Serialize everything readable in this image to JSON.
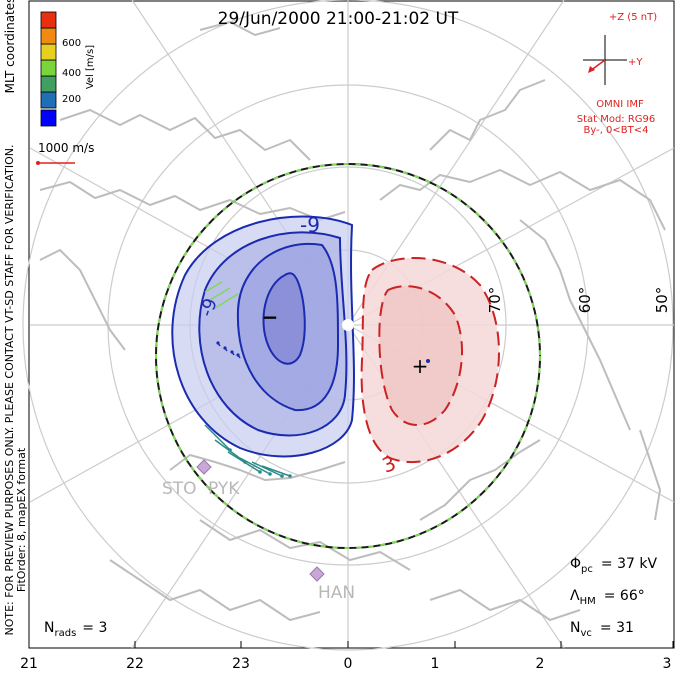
{
  "title": "29/Jun/2000 21:00-21:02 UT",
  "coords_label": "MLT coordinates",
  "colorbar": {
    "label": "Vel [m/s]",
    "ticks": [
      "600",
      "400",
      "200"
    ],
    "colors": [
      "#0000ff",
      "#1e6fb5",
      "#3fa060",
      "#7bd43a",
      "#e8d020",
      "#f08a10",
      "#e83010"
    ]
  },
  "velocity_scale": "1000 m/s",
  "imf": {
    "z_label": "+Z (5 nT)",
    "y_label": "+Y",
    "source": "OMNI IMF",
    "model": "Stat Mod: RG96",
    "condition": "By-, 0<BT<4",
    "color": "#dd2222"
  },
  "latitude_labels": [
    "70°",
    "60°",
    "50°"
  ],
  "contour_labels": {
    "negative": [
      "-9",
      "-9"
    ],
    "positive": [
      "3"
    ]
  },
  "cell_markers": {
    "min": "−",
    "max": "+"
  },
  "stations": [
    "STO",
    "PYK",
    "HAN"
  ],
  "side_note": "NOTE: FOR PREVIEW PURPOSES ONLY. PLEASE CONTACT VT-SD STAFF FOR VERIFICATION.",
  "fit_note": "FitOrder: 8, mapEX format",
  "nrads": {
    "label": "N",
    "sub": "rads",
    "value": "= 3"
  },
  "phi_pc": {
    "label": "Φ",
    "sub": "pc",
    "value": "= 37 kV"
  },
  "lambda_hm": {
    "label": "Λ",
    "sub": "HM",
    "value": "= 66°"
  },
  "nvc": {
    "label": "N",
    "sub": "vc",
    "value": "= 31"
  },
  "mlt_ticks": [
    "21",
    "22",
    "23",
    "0",
    "1",
    "2",
    "3"
  ],
  "colors": {
    "negative_cell": "#2a3aa8",
    "positive_cell": "#cc2222",
    "map_lines": "#bdbdbd",
    "grid": "#cccccc",
    "boundary": "#1a1a1a",
    "boundary_dash": "#7ed957"
  }
}
